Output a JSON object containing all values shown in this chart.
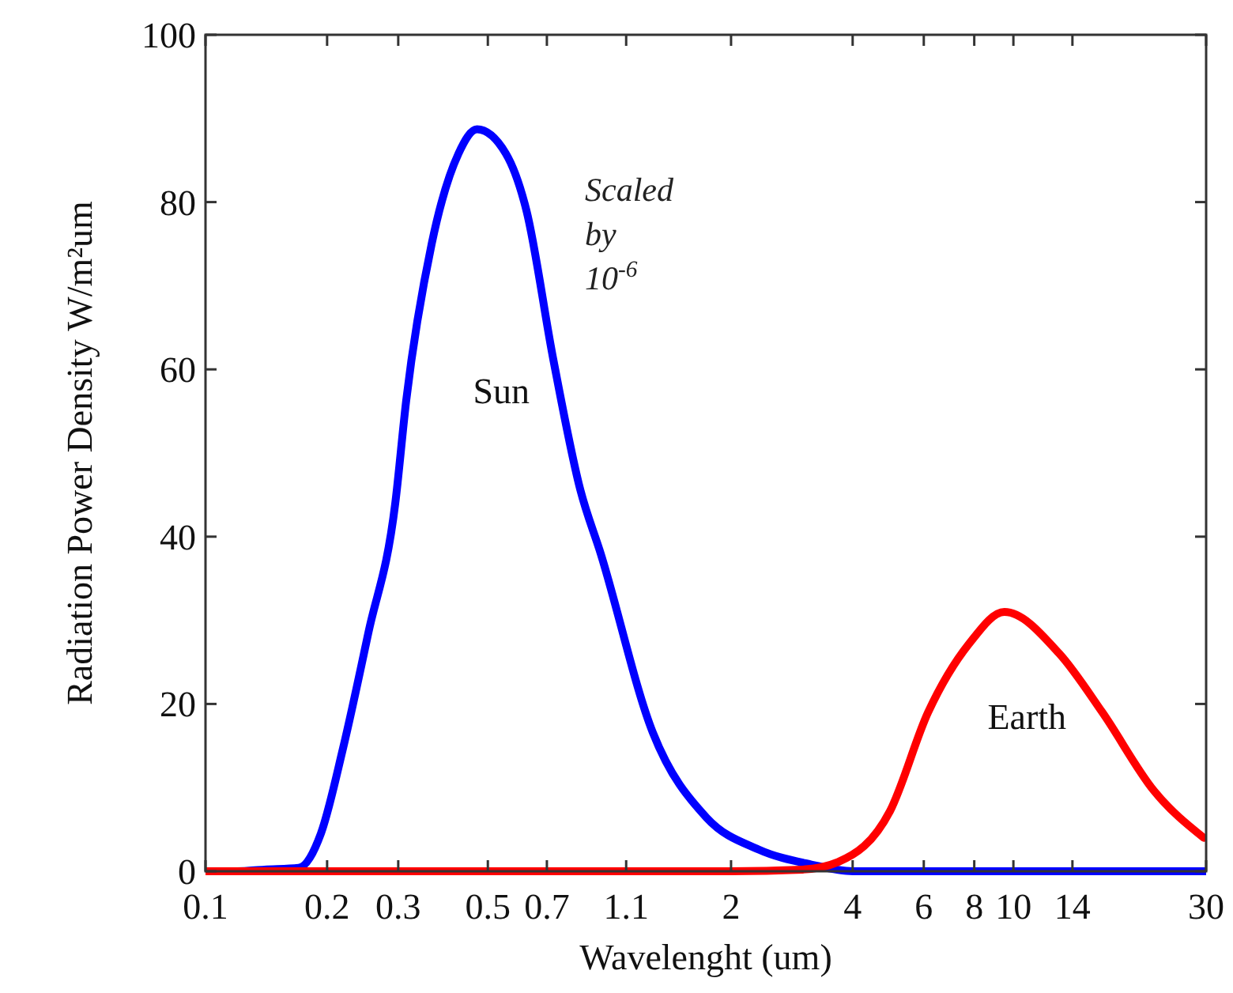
{
  "chart_data": {
    "type": "line",
    "xlabel": "Wavelenght (um)",
    "ylabel": "Radiation Power Density W/m²um",
    "log": "x",
    "xlim": [
      0.1,
      30
    ],
    "ylim": [
      0,
      100
    ],
    "xticks": [
      0.1,
      0.2,
      0.3,
      0.5,
      0.7,
      1.1,
      2,
      4,
      6,
      8,
      10,
      14,
      30
    ],
    "yticks": [
      0,
      20,
      40,
      60,
      80,
      100
    ],
    "grid": false,
    "legend": false,
    "marker": "none",
    "line_style": "solid",
    "series": [
      {
        "name": "Sun",
        "color": "#0000ff",
        "x": [
          0.1,
          0.12,
          0.14,
          0.17,
          0.193,
          0.219,
          0.253,
          0.295,
          0.314,
          0.363,
          0.423,
          0.47,
          0.554,
          0.623,
          0.726,
          0.847,
          0.951,
          1.28,
          1.74,
          2.34,
          3.16,
          4,
          6,
          10,
          30
        ],
        "values": [
          0,
          0,
          0.2,
          0.4,
          4.5,
          14.7,
          28.5,
          44,
          56.3,
          75,
          85.8,
          88.7,
          85.8,
          79,
          61.2,
          45.6,
          38,
          16.6,
          6.4,
          2.6,
          0.8,
          0,
          0,
          0,
          0
        ]
      },
      {
        "name": "Earth",
        "color": "#ff0000",
        "x": [
          0.1,
          1,
          2,
          3,
          3.68,
          4.95,
          6.15,
          7.77,
          9.5,
          13,
          16.6,
          22.3,
          29.6
        ],
        "values": [
          0,
          0,
          0,
          0.2,
          1.1,
          7.2,
          19,
          27.2,
          31,
          26,
          19,
          9.6,
          4
        ]
      }
    ],
    "annotations": [
      "Scaled by 10$^{-6}$"
    ]
  }
}
